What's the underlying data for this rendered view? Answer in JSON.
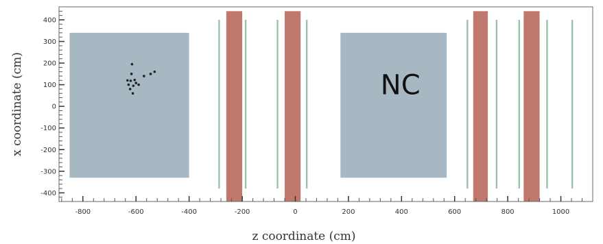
{
  "chart_data": {
    "type": "scatter",
    "title": "",
    "xlabel": "z coordinate (cm)",
    "ylabel": "x coordinate (cm)",
    "xlim": [
      -890,
      1120
    ],
    "ylim": [
      -440,
      460
    ],
    "xticks": [
      -800,
      -600,
      -400,
      -200,
      0,
      200,
      400,
      600,
      800,
      1000
    ],
    "xtick_labels": [
      "-800",
      "-600",
      "-400",
      "-200",
      "0",
      "200",
      "400",
      "600",
      "800",
      "1000"
    ],
    "yticks": [
      400,
      300,
      200,
      100,
      0,
      -100,
      -200,
      -300,
      -400
    ],
    "ytick_labels": [
      "400",
      "300",
      "200",
      "100",
      "0",
      "-100",
      "-200",
      "-300",
      "-400"
    ],
    "grid": false,
    "colors": {
      "nc_region": "#a7b8c3",
      "red_layer": "#c0786c",
      "green_layer": "#95c2a8",
      "points": "#222222",
      "frame": "#666666"
    },
    "regions": [
      {
        "label": "",
        "type": "nc",
        "z": [
          -850,
          -400
        ],
        "x": [
          -330,
          340
        ]
      },
      {
        "label": "NC",
        "type": "nc",
        "z": [
          170,
          570
        ],
        "x": [
          -330,
          340
        ]
      }
    ],
    "red_bands": [
      {
        "z": [
          -260,
          -200
        ],
        "x": [
          -440,
          440
        ]
      },
      {
        "z": [
          -40,
          20
        ],
        "x": [
          -440,
          440
        ]
      },
      {
        "z": [
          670,
          725
        ],
        "x": [
          -440,
          440
        ]
      },
      {
        "z": [
          860,
          920
        ],
        "x": [
          -440,
          440
        ]
      }
    ],
    "green_bands": [
      {
        "z": [
          -290,
          -284
        ],
        "x": [
          -380,
          400
        ]
      },
      {
        "z": [
          -190,
          -184
        ],
        "x": [
          -380,
          400
        ]
      },
      {
        "z": [
          -70,
          -64
        ],
        "x": [
          -380,
          400
        ]
      },
      {
        "z": [
          40,
          46
        ],
        "x": [
          -380,
          400
        ]
      },
      {
        "z": [
          645,
          651
        ],
        "x": [
          -380,
          400
        ]
      },
      {
        "z": [
          755,
          761
        ],
        "x": [
          -380,
          400
        ]
      },
      {
        "z": [
          840,
          846
        ],
        "x": [
          -380,
          400
        ]
      },
      {
        "z": [
          945,
          951
        ],
        "x": [
          -380,
          400
        ]
      },
      {
        "z": [
          1040,
          1046
        ],
        "x": [
          -380,
          400
        ]
      }
    ],
    "points": [
      {
        "z": -615,
        "x": 195
      },
      {
        "z": -617,
        "x": 150
      },
      {
        "z": -632,
        "x": 120
      },
      {
        "z": -620,
        "x": 118
      },
      {
        "z": -605,
        "x": 122
      },
      {
        "z": -600,
        "x": 108
      },
      {
        "z": -628,
        "x": 100
      },
      {
        "z": -610,
        "x": 95
      },
      {
        "z": -590,
        "x": 100
      },
      {
        "z": -622,
        "x": 80
      },
      {
        "z": -612,
        "x": 60
      },
      {
        "z": -570,
        "x": 140
      },
      {
        "z": -545,
        "x": 150
      },
      {
        "z": -530,
        "x": 160
      }
    ]
  }
}
